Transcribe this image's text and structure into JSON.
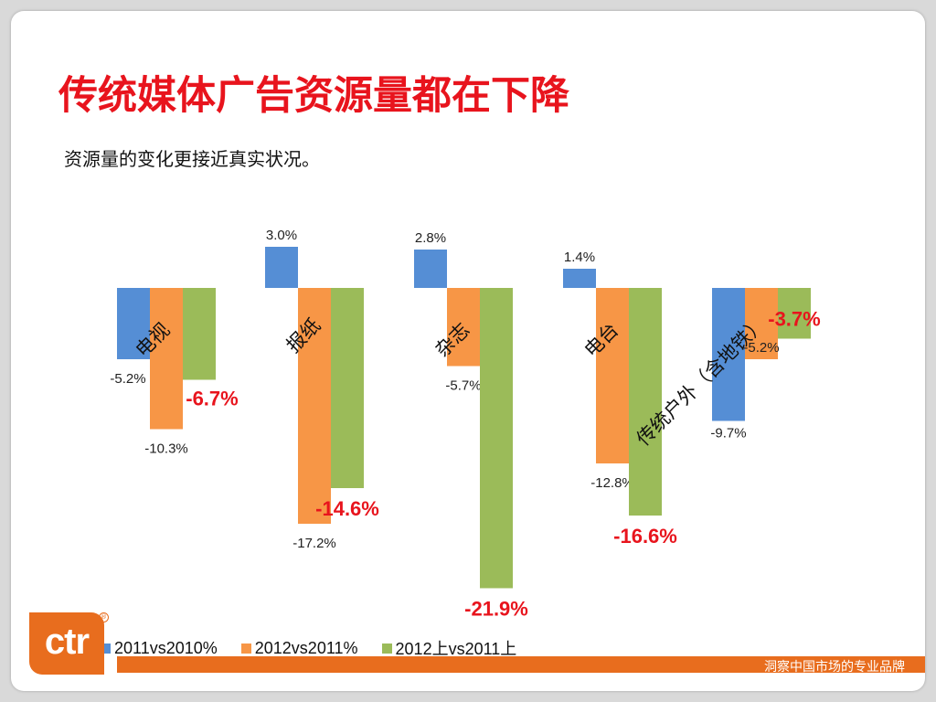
{
  "slide": {
    "title": "传统媒体广告资源量都在下降",
    "subtitle": "资源量的变化更接近真实状况。",
    "footer_tagline": "洞察中国市场的专业品牌",
    "logo_text": "ctr",
    "registered_mark": "®"
  },
  "colors": {
    "series_2011": "#558ed5",
    "series_2012": "#f79646",
    "series_2012h1": "#9bbb59",
    "highlight": "#e8141d",
    "brand_orange": "#e86d1e"
  },
  "chart_data": {
    "type": "bar",
    "categories": [
      "电视",
      "报纸",
      "杂志",
      "电台",
      "传统户外（含地铁）"
    ],
    "series": [
      {
        "name": "2011vs2010%",
        "values": [
          -5.2,
          3.0,
          2.8,
          1.4,
          -9.7
        ]
      },
      {
        "name": "2012vs2011%",
        "values": [
          -10.3,
          -17.2,
          -5.7,
          -12.8,
          -5.2
        ]
      },
      {
        "name": "2012上vs2011上",
        "values": [
          -6.7,
          -14.6,
          -21.9,
          -16.6,
          -3.7
        ]
      }
    ],
    "data_labels": [
      [
        "-5.2%",
        "3.0%",
        "2.8%",
        "1.4%",
        "-9.7%"
      ],
      [
        "-10.3%",
        "-17.2%",
        "-5.7%",
        "-12.8%",
        "-5.2%"
      ],
      [
        "-6.7%",
        "-14.6%",
        "-21.9%",
        "-16.6%",
        "-3.7%"
      ]
    ],
    "title": "",
    "xlabel": "",
    "ylabel": "",
    "ylim": [
      -22,
      3.5
    ],
    "grid": false,
    "legend_position": "bottom",
    "highlighted_series": "2012上vs2011上"
  }
}
